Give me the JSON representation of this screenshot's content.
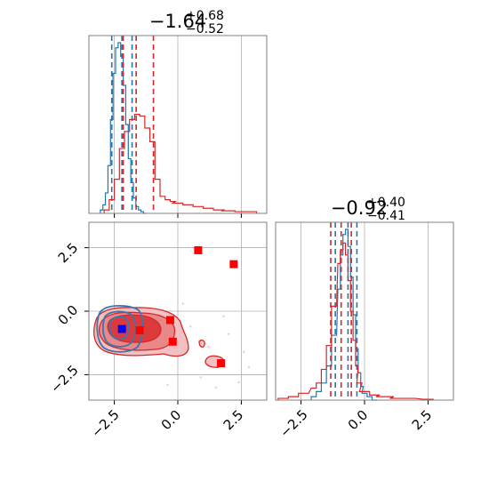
{
  "chart_data": [
    {
      "type": "histogram",
      "panel": "top-left marginal (parameter 1)",
      "title_main": "−1.64",
      "title_sup": "+0.68",
      "title_sub": "−0.52",
      "xlim": [
        -3.5,
        3.5
      ],
      "grid": true,
      "series": [
        {
          "color": "#1f77b4",
          "quantiles": [
            -2.6,
            -2.2,
            -1.8
          ],
          "x": [
            -3.0,
            -2.9,
            -2.8,
            -2.7,
            -2.6,
            -2.5,
            -2.4,
            -2.3,
            -2.2,
            -2.1,
            -2.0,
            -1.9,
            -1.8,
            -1.7,
            -1.6,
            -1.5,
            -1.4,
            -1.3
          ],
          "y": [
            0.02,
            0.05,
            0.12,
            0.28,
            0.55,
            0.82,
            0.97,
            1.0,
            0.92,
            0.75,
            0.52,
            0.32,
            0.18,
            0.09,
            0.04,
            0.02,
            0.01,
            0.0
          ]
        },
        {
          "color": "#d62728",
          "quantiles": [
            -2.15,
            -1.64,
            -0.96
          ],
          "x": [
            -2.8,
            -2.6,
            -2.4,
            -2.2,
            -2.0,
            -1.8,
            -1.6,
            -1.4,
            -1.2,
            -1.0,
            -0.8,
            -0.6,
            -0.4,
            -0.2,
            0.0,
            0.4,
            0.8,
            1.2,
            1.6,
            2.0,
            2.5,
            3.0
          ],
          "y": [
            0.02,
            0.08,
            0.2,
            0.38,
            0.48,
            0.55,
            0.58,
            0.57,
            0.5,
            0.42,
            0.2,
            0.1,
            0.08,
            0.07,
            0.06,
            0.05,
            0.04,
            0.03,
            0.02,
            0.015,
            0.01,
            0.01
          ]
        }
      ]
    },
    {
      "type": "contour-scatter",
      "panel": "bottom-left joint (parameter 1 vs parameter 2)",
      "xlim": [
        -3.5,
        3.5
      ],
      "ylim": [
        -3.5,
        3.5
      ],
      "x_ticks": [
        "−2.5",
        "0.0",
        "2.5"
      ],
      "y_ticks": [
        "−2.5",
        "0.0",
        "2.5"
      ],
      "grid": true,
      "red_points": [
        {
          "x": 0.8,
          "y": 2.4
        },
        {
          "x": 2.2,
          "y": 1.85
        },
        {
          "x": -0.3,
          "y": -0.35
        },
        {
          "x": -1.5,
          "y": -0.75
        },
        {
          "x": -0.2,
          "y": -1.2
        },
        {
          "x": 1.7,
          "y": -2.05
        }
      ],
      "blue_points": [
        {
          "x": -2.2,
          "y": -0.7
        }
      ]
    },
    {
      "type": "histogram",
      "panel": "bottom-right marginal (parameter 2)",
      "title_main": "−0.92",
      "title_sup": "+0.40",
      "title_sub": "−0.41",
      "xlim": [
        -3.5,
        3.5
      ],
      "x_ticks": [
        "−2.5",
        "0.0",
        "2.5"
      ],
      "grid": true,
      "series": [
        {
          "color": "#1f77b4",
          "quantiles": [
            -1.15,
            -0.65,
            -0.3
          ],
          "x": [
            -2.0,
            -1.8,
            -1.6,
            -1.4,
            -1.2,
            -1.0,
            -0.9,
            -0.8,
            -0.7,
            -0.6,
            -0.5,
            -0.4,
            -0.3,
            -0.2,
            -0.1,
            0.0,
            0.2,
            0.4
          ],
          "y": [
            0.02,
            0.05,
            0.1,
            0.2,
            0.38,
            0.65,
            0.85,
            0.97,
            1.0,
            0.9,
            0.72,
            0.5,
            0.3,
            0.16,
            0.08,
            0.04,
            0.02,
            0.0
          ]
        },
        {
          "color": "#d62728",
          "quantiles": [
            -1.33,
            -0.92,
            -0.52
          ],
          "x": [
            -3.2,
            -2.8,
            -2.4,
            -2.0,
            -1.8,
            -1.6,
            -1.4,
            -1.2,
            -1.0,
            -0.9,
            -0.8,
            -0.7,
            -0.6,
            -0.5,
            -0.4,
            -0.3,
            -0.2,
            0.0,
            0.4,
            0.8,
            1.5,
            2.5
          ],
          "y": [
            0.01,
            0.02,
            0.04,
            0.07,
            0.1,
            0.18,
            0.32,
            0.55,
            0.8,
            0.88,
            0.92,
            0.85,
            0.7,
            0.52,
            0.35,
            0.2,
            0.1,
            0.05,
            0.03,
            0.02,
            0.01,
            0.005
          ]
        }
      ]
    }
  ]
}
